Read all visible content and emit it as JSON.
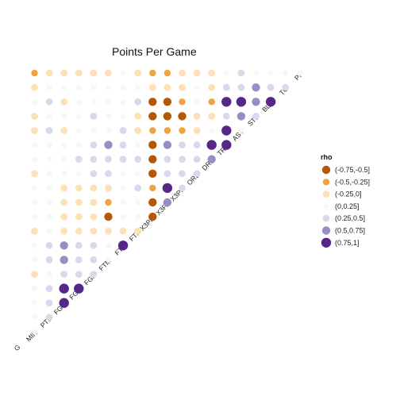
{
  "chart_data": {
    "type": "scatter",
    "title": "Points Per Game",
    "variables": [
      "G",
      "MIN",
      "PTS",
      "FGM",
      "FGA",
      "FGP",
      "FTM",
      "FTA",
      "FTP",
      "X3PM",
      "X3PA",
      "X3PP",
      "ORB",
      "DRB",
      "TRB",
      "AST",
      "STL",
      "BLK",
      "TO",
      "PF"
    ],
    "legend": {
      "title": "rho",
      "position": "right",
      "bins": [
        {
          "label": "(-0.75,-0.5]",
          "color": "#b35806"
        },
        {
          "label": "(-0.5,-0.25]",
          "color": "#f1a340"
        },
        {
          "label": "(-0.25,0]",
          "color": "#fee0b6"
        },
        {
          "label": "(0,0.25]",
          "color": "#f7f7f7"
        },
        {
          "label": "(0.25,0.5]",
          "color": "#d8daeb"
        },
        {
          "label": "(0.5,0.75]",
          "color": "#998ec3"
        },
        {
          "label": "(0.75,1]",
          "color": "#542788"
        }
      ]
    },
    "bin_matrix_note": "row i = variable i (i>=1), column j = variable j (j<i); value = legend bin index (0..6)",
    "bins_matrix": [
      [],
      [
        3
      ],
      [
        3,
        4
      ],
      [
        3,
        4,
        6
      ],
      [
        3,
        4,
        6,
        6
      ],
      [
        2,
        3,
        4,
        4,
        4
      ],
      [
        3,
        4,
        5,
        4,
        4,
        3
      ],
      [
        3,
        4,
        5,
        4,
        4,
        3,
        6
      ],
      [
        2,
        3,
        2,
        2,
        2,
        2,
        2,
        2
      ],
      [
        3,
        3,
        2,
        2,
        2,
        0,
        3,
        3,
        0
      ],
      [
        3,
        3,
        2,
        2,
        2,
        1,
        3,
        3,
        0,
        5
      ],
      [
        3,
        3,
        2,
        2,
        2,
        2,
        3,
        4,
        1,
        6,
        4
      ],
      [
        2,
        3,
        3,
        3,
        4,
        4,
        3,
        3,
        0,
        4,
        4,
        4
      ],
      [
        3,
        3,
        3,
        4,
        4,
        4,
        4,
        4,
        0,
        4,
        4,
        4,
        5
      ],
      [
        3,
        3,
        3,
        3,
        4,
        5,
        4,
        3,
        0,
        5,
        4,
        4,
        6,
        6
      ],
      [
        2,
        4,
        2,
        3,
        3,
        3,
        4,
        2,
        1,
        1,
        1,
        2,
        3,
        6,
        3
      ],
      [
        2,
        3,
        3,
        3,
        4,
        3,
        3,
        2,
        0,
        0,
        0,
        2,
        2,
        4,
        5,
        4
      ],
      [
        3,
        4,
        2,
        3,
        3,
        3,
        3,
        4,
        0,
        0,
        1,
        3,
        1,
        6,
        6,
        5,
        6
      ],
      [
        2,
        3,
        3,
        3,
        3,
        3,
        3,
        3,
        2,
        2,
        2,
        3,
        2,
        4,
        4,
        5,
        4,
        4
      ],
      [
        1,
        2,
        2,
        2,
        2,
        2,
        3,
        2,
        1,
        1,
        2,
        2,
        2,
        3,
        4,
        3,
        3,
        3,
        3
      ]
    ]
  }
}
